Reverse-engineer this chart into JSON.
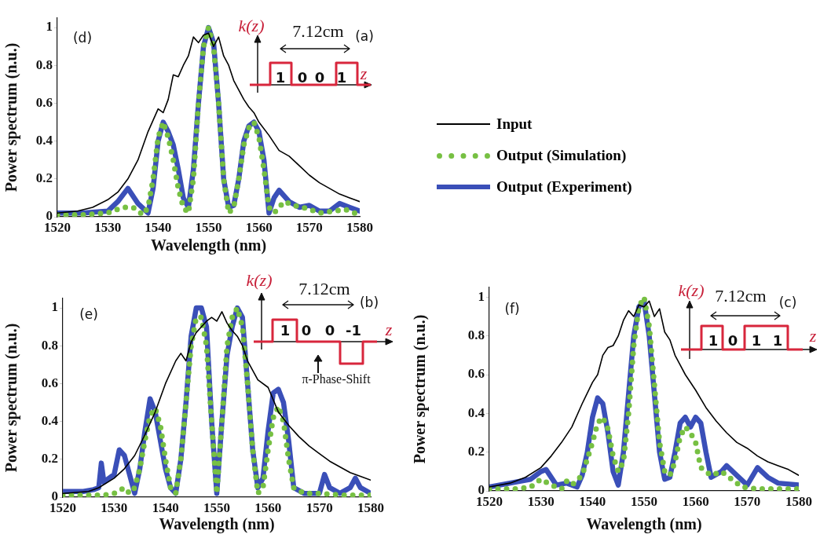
{
  "chart_data": [
    {
      "type": "line",
      "xlabel": "Wavelength (nm)",
      "ylabel": "Power spectrum (n.u.)",
      "xlim": [
        1520,
        1580
      ],
      "xticks": [
        1520,
        1530,
        1540,
        1550,
        1560,
        1570,
        1580
      ],
      "ylim": [
        0,
        1.05
      ],
      "yticks": [
        0,
        0.2,
        0.4,
        0.6,
        0.8,
        1
      ],
      "grid": false,
      "legend": "right",
      "marker": "none",
      "annotations": [
        "(d)",
        "k(z)",
        "7.12cm",
        "(a)",
        "1",
        "0",
        "0",
        "1",
        "z"
      ],
      "series": [
        {
          "name": "Input",
          "color": "#000000",
          "line_style": "solid",
          "x": [
            1520,
            1524,
            1527,
            1530,
            1532,
            1534,
            1536,
            1538,
            1540,
            1541,
            1542,
            1543,
            1544,
            1545,
            1546,
            1547,
            1548,
            1549,
            1550,
            1551,
            1552,
            1553,
            1554,
            1555,
            1556,
            1557,
            1558,
            1559,
            1560,
            1562,
            1564,
            1566,
            1568,
            1570,
            1572,
            1574,
            1576,
            1578,
            1580
          ],
          "values": [
            0.02,
            0.03,
            0.05,
            0.09,
            0.13,
            0.2,
            0.3,
            0.45,
            0.57,
            0.55,
            0.62,
            0.75,
            0.74,
            0.8,
            0.85,
            0.95,
            0.92,
            0.96,
            0.97,
            0.9,
            0.95,
            0.85,
            0.8,
            0.72,
            0.67,
            0.62,
            0.58,
            0.55,
            0.5,
            0.43,
            0.35,
            0.32,
            0.27,
            0.22,
            0.18,
            0.15,
            0.12,
            0.1,
            0.08
          ]
        },
        {
          "name": "Output (Simulation)",
          "color": "#77c043",
          "line_style": "dotted",
          "x": [
            1520,
            1525,
            1530,
            1533,
            1535,
            1537,
            1538,
            1539,
            1540,
            1541,
            1542,
            1543,
            1544,
            1545,
            1546,
            1547,
            1548,
            1549,
            1550,
            1551,
            1552,
            1553,
            1554,
            1555,
            1556,
            1557,
            1558,
            1559,
            1560,
            1561,
            1562,
            1563,
            1565,
            1567,
            1570,
            1572,
            1575,
            1577,
            1580
          ],
          "values": [
            0.01,
            0.01,
            0.02,
            0.05,
            0.05,
            0.01,
            0.05,
            0.2,
            0.42,
            0.5,
            0.42,
            0.3,
            0.15,
            0.05,
            0.02,
            0.2,
            0.6,
            0.9,
            1.0,
            0.9,
            0.6,
            0.2,
            0.02,
            0.05,
            0.2,
            0.38,
            0.47,
            0.5,
            0.42,
            0.25,
            0.05,
            0.02,
            0.08,
            0.06,
            0.04,
            0.02,
            0.03,
            0.04,
            0.01
          ]
        },
        {
          "name": "Output (Experiment)",
          "color": "#3a4fb8",
          "line_style": "solid",
          "x": [
            1520,
            1525,
            1530,
            1532,
            1534,
            1536,
            1538,
            1539,
            1540,
            1541,
            1542,
            1543,
            1544,
            1545,
            1546,
            1547,
            1548,
            1549,
            1550,
            1551,
            1552,
            1553,
            1554,
            1555,
            1556,
            1557,
            1558,
            1559,
            1560,
            1561,
            1562,
            1563,
            1564,
            1566,
            1568,
            1570,
            1572,
            1574,
            1576,
            1578,
            1580
          ],
          "values": [
            0.02,
            0.02,
            0.03,
            0.08,
            0.15,
            0.07,
            0.02,
            0.15,
            0.4,
            0.5,
            0.45,
            0.38,
            0.25,
            0.1,
            0.05,
            0.25,
            0.6,
            0.9,
            1.0,
            0.92,
            0.6,
            0.2,
            0.05,
            0.06,
            0.2,
            0.4,
            0.48,
            0.5,
            0.45,
            0.3,
            0.02,
            0.1,
            0.14,
            0.08,
            0.05,
            0.06,
            0.03,
            0.03,
            0.07,
            0.05,
            0.03
          ]
        }
      ]
    },
    {
      "type": "line",
      "xlabel": "Wavelength (nm)",
      "ylabel": "Power spectrum (n.u.)",
      "xlim": [
        1520,
        1580
      ],
      "xticks": [
        1520,
        1530,
        1540,
        1550,
        1560,
        1570,
        1580
      ],
      "ylim": [
        0,
        1.05
      ],
      "yticks": [
        0,
        0.2,
        0.4,
        0.6,
        0.8,
        1
      ],
      "grid": false,
      "marker": "none",
      "annotations": [
        "(e)",
        "k(z)",
        "7.12cm",
        "(b)",
        "1",
        "0",
        "0",
        "-1",
        "z",
        "π-Phase-Shift"
      ],
      "series": [
        {
          "color": "#000000",
          "line_style": "solid",
          "x": [
            1520,
            1525,
            1527,
            1530,
            1532,
            1534,
            1536,
            1538,
            1540,
            1542,
            1543,
            1544,
            1545,
            1546,
            1548,
            1549,
            1550,
            1551,
            1552,
            1553,
            1554,
            1555,
            1556,
            1557,
            1558,
            1560,
            1562,
            1564,
            1566,
            1568,
            1570,
            1572,
            1574,
            1576,
            1578,
            1580
          ],
          "values": [
            0.02,
            0.03,
            0.05,
            0.1,
            0.15,
            0.22,
            0.33,
            0.45,
            0.6,
            0.72,
            0.76,
            0.72,
            0.82,
            0.87,
            0.93,
            0.95,
            0.93,
            0.98,
            0.92,
            0.88,
            0.85,
            0.8,
            0.72,
            0.67,
            0.62,
            0.58,
            0.45,
            0.38,
            0.32,
            0.27,
            0.23,
            0.19,
            0.16,
            0.13,
            0.11,
            0.09
          ]
        },
        {
          "color": "#77c043",
          "line_style": "dotted",
          "x": [
            1520,
            1528,
            1530,
            1532,
            1533,
            1534,
            1535,
            1536,
            1537,
            1538,
            1539,
            1540,
            1541,
            1542,
            1543,
            1544,
            1545,
            1546,
            1547,
            1548,
            1549,
            1550,
            1551,
            1552,
            1553,
            1554,
            1555,
            1556,
            1557,
            1558,
            1559,
            1560,
            1561,
            1562,
            1563,
            1564,
            1565,
            1567,
            1570,
            1575,
            1580
          ],
          "values": [
            0.01,
            0.01,
            0.02,
            0.05,
            0.02,
            0.05,
            0.15,
            0.3,
            0.43,
            0.47,
            0.38,
            0.2,
            0.05,
            0.02,
            0.2,
            0.5,
            0.8,
            0.95,
            0.95,
            0.8,
            0.4,
            0.02,
            0.4,
            0.8,
            0.95,
            1.0,
            0.9,
            0.6,
            0.25,
            0.02,
            0.05,
            0.25,
            0.42,
            0.48,
            0.4,
            0.2,
            0.05,
            0.02,
            0.02,
            0.01,
            0.01
          ]
        },
        {
          "color": "#3a4fb8",
          "line_style": "solid",
          "x": [
            1520,
            1524,
            1526,
            1527,
            1527.5,
            1528,
            1530,
            1531,
            1532,
            1533,
            1534,
            1535,
            1536,
            1537,
            1538,
            1539,
            1540,
            1541,
            1542,
            1543,
            1544,
            1545,
            1546,
            1547,
            1548,
            1549,
            1550,
            1551,
            1552,
            1553,
            1554,
            1555,
            1556,
            1557,
            1558,
            1559,
            1560,
            1561,
            1562,
            1563,
            1564,
            1565,
            1567,
            1570,
            1571,
            1572,
            1574,
            1576,
            1577,
            1578,
            1580
          ],
          "values": [
            0.03,
            0.03,
            0.04,
            0.05,
            0.18,
            0.08,
            0.12,
            0.25,
            0.22,
            0.12,
            0.02,
            0.15,
            0.35,
            0.52,
            0.45,
            0.3,
            0.15,
            0.05,
            0.02,
            0.2,
            0.5,
            0.85,
            1.0,
            1.0,
            0.9,
            0.4,
            0.02,
            0.4,
            0.75,
            0.9,
            1.0,
            0.95,
            0.6,
            0.25,
            0.05,
            0.1,
            0.35,
            0.55,
            0.57,
            0.5,
            0.3,
            0.05,
            0.02,
            0.02,
            0.12,
            0.05,
            0.02,
            0.05,
            0.1,
            0.05,
            0.02
          ]
        }
      ]
    },
    {
      "type": "line",
      "xlabel": "Wavelength (nm)",
      "ylabel": "Power spectrum (n.u.)",
      "xlim": [
        1520,
        1580
      ],
      "xticks": [
        1520,
        1530,
        1540,
        1550,
        1560,
        1570,
        1580
      ],
      "ylim": [
        0,
        1.05
      ],
      "yticks": [
        0,
        0.2,
        0.4,
        0.6,
        0.8,
        1
      ],
      "grid": false,
      "marker": "none",
      "annotations": [
        "(f)",
        "k(z)",
        "7.12cm",
        "(c)",
        "1",
        "0",
        "1",
        "1",
        "z"
      ],
      "series": [
        {
          "color": "#000000",
          "line_style": "solid",
          "x": [
            1520,
            1524,
            1527,
            1530,
            1532,
            1534,
            1536,
            1538,
            1540,
            1541,
            1542,
            1543,
            1544,
            1545,
            1546,
            1547,
            1548,
            1549,
            1550,
            1551,
            1552,
            1553,
            1554,
            1555,
            1556,
            1557,
            1558,
            1560,
            1562,
            1564,
            1566,
            1568,
            1570,
            1572,
            1574,
            1576,
            1578,
            1580
          ],
          "values": [
            0.02,
            0.04,
            0.07,
            0.12,
            0.18,
            0.25,
            0.33,
            0.45,
            0.56,
            0.6,
            0.7,
            0.74,
            0.75,
            0.8,
            0.88,
            0.93,
            0.9,
            0.96,
            0.95,
            0.98,
            0.9,
            0.94,
            0.82,
            0.78,
            0.7,
            0.65,
            0.6,
            0.52,
            0.43,
            0.36,
            0.3,
            0.25,
            0.22,
            0.18,
            0.15,
            0.13,
            0.11,
            0.08
          ]
        },
        {
          "color": "#77c043",
          "line_style": "dotted",
          "x": [
            1520,
            1525,
            1528,
            1530,
            1532,
            1534,
            1535,
            1536,
            1538,
            1540,
            1541,
            1542,
            1543,
            1544,
            1545,
            1546,
            1547,
            1548,
            1549,
            1550,
            1551,
            1552,
            1553,
            1554,
            1555,
            1556,
            1557,
            1558,
            1559,
            1560,
            1561,
            1563,
            1565,
            1567,
            1569,
            1572,
            1575,
            1580
          ],
          "values": [
            0.01,
            0.01,
            0.02,
            0.06,
            0.03,
            0.01,
            0.05,
            0.03,
            0.08,
            0.25,
            0.35,
            0.38,
            0.32,
            0.18,
            0.1,
            0.15,
            0.4,
            0.75,
            0.95,
            1.0,
            0.85,
            0.55,
            0.25,
            0.1,
            0.08,
            0.15,
            0.28,
            0.33,
            0.3,
            0.25,
            0.12,
            0.08,
            0.1,
            0.06,
            0.02,
            0.01,
            0.01,
            0.01
          ]
        },
        {
          "color": "#3a4fb8",
          "line_style": "solid",
          "x": [
            1520,
            1524,
            1528,
            1530,
            1531,
            1533,
            1535,
            1537,
            1538,
            1539,
            1540,
            1541,
            1542,
            1543,
            1544,
            1545,
            1546,
            1547,
            1548,
            1549,
            1550,
            1551,
            1552,
            1553,
            1554,
            1555,
            1556,
            1557,
            1558,
            1559,
            1560,
            1561,
            1562,
            1563,
            1565,
            1566,
            1568,
            1570,
            1572,
            1574,
            1576,
            1580
          ],
          "values": [
            0.02,
            0.04,
            0.06,
            0.1,
            0.11,
            0.03,
            0.04,
            0.02,
            0.08,
            0.2,
            0.38,
            0.48,
            0.45,
            0.3,
            0.1,
            0.03,
            0.2,
            0.5,
            0.8,
            0.95,
            0.98,
            0.8,
            0.5,
            0.2,
            0.06,
            0.07,
            0.2,
            0.35,
            0.38,
            0.33,
            0.38,
            0.35,
            0.2,
            0.07,
            0.1,
            0.13,
            0.08,
            0.03,
            0.12,
            0.07,
            0.04,
            0.03
          ]
        }
      ]
    }
  ]
}
